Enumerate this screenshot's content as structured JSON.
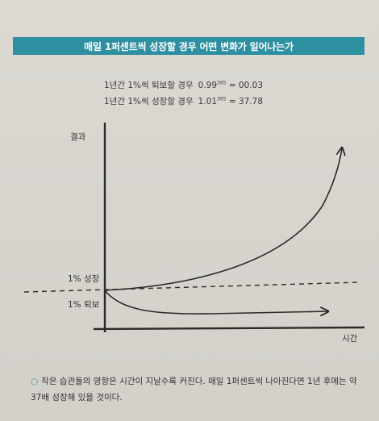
{
  "banner": {
    "title": "매일 1퍼센트씩 성장할 경우 어떤 변화가 일어나는가"
  },
  "formulas": [
    {
      "label": "1년간 1%씩 퇴보할 경우",
      "base": "0.99",
      "exp": "365",
      "result": "= 00.03"
    },
    {
      "label": "1년간 1%씩 성장할 경우",
      "base": "1.01",
      "exp": "365",
      "result": "= 37.78"
    }
  ],
  "chart": {
    "ylabel": "결과",
    "xlabel": "시간",
    "growth_label": "1% 성장",
    "decline_label": "1% 퇴보",
    "stroke_color": "#2a2a2a"
  },
  "chart_data": {
    "type": "line",
    "xlabel": "시간",
    "ylabel": "결과",
    "series": [
      {
        "name": "1% 성장",
        "x": [
          0,
          60,
          120,
          180,
          240,
          300,
          365
        ],
        "values": [
          1.0,
          1.82,
          3.3,
          6.0,
          10.9,
          19.8,
          37.78
        ]
      },
      {
        "name": "1% 퇴보",
        "x": [
          0,
          60,
          120,
          180,
          240,
          300,
          365
        ],
        "values": [
          1.0,
          0.55,
          0.3,
          0.16,
          0.09,
          0.05,
          0.03
        ]
      }
    ],
    "baseline": 1.0,
    "grid": false
  },
  "caption": {
    "bullet": "○",
    "text": "작은 습관들의 영향은 시간이 지날수록 커진다. 매일 1퍼센트씩 나아진다면 1년 후에는 약 37배 성장해 있을 것이다."
  }
}
